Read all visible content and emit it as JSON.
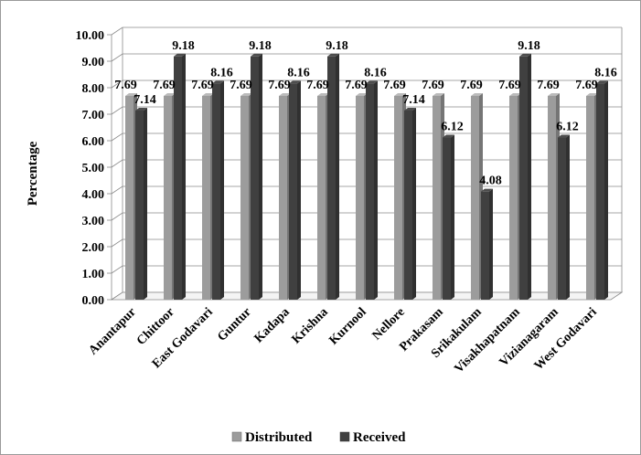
{
  "chart_data": {
    "type": "bar",
    "ylabel": "Percentage",
    "ylim": [
      0,
      10
    ],
    "ytick_step": 1,
    "ytick_labels": [
      "0.00",
      "1.00",
      "2.00",
      "3.00",
      "4.00",
      "5.00",
      "6.00",
      "7.00",
      "8.00",
      "9.00",
      "10.00"
    ],
    "grid": true,
    "legend_position": "bottom",
    "categories": [
      "Anantapur",
      "Chittoor",
      "East Godavari",
      "Guntur",
      "Kadapa",
      "Krishna",
      "Kurnool",
      "Nellore",
      "Prakasam",
      "Srikakulam",
      "Visakhapatnam",
      "Vizianagaram",
      "West Godavari"
    ],
    "series": [
      {
        "name": "Distributed",
        "color": "#9c9c9c",
        "values": [
          7.69,
          7.69,
          7.69,
          7.69,
          7.69,
          7.69,
          7.69,
          7.69,
          7.69,
          7.69,
          7.69,
          7.69,
          7.69
        ],
        "labels": [
          "7.69",
          "7.69",
          "7.69",
          "7.69",
          "7.69",
          "7.69",
          "7.69",
          "7.69",
          "7.69",
          "7.69",
          "7.69",
          "7.69",
          "7.69"
        ]
      },
      {
        "name": "Received",
        "color": "#404040",
        "values": [
          7.14,
          9.18,
          8.16,
          9.18,
          8.16,
          9.18,
          8.16,
          7.14,
          6.12,
          4.08,
          9.18,
          6.12,
          8.16
        ],
        "labels": [
          "7.14",
          "9.18",
          "8.16",
          "9.18",
          "8.16",
          "9.18",
          "8.16",
          "7.14",
          "6.12",
          "4.08",
          "9.18",
          "6.12",
          "8.16"
        ]
      }
    ]
  }
}
